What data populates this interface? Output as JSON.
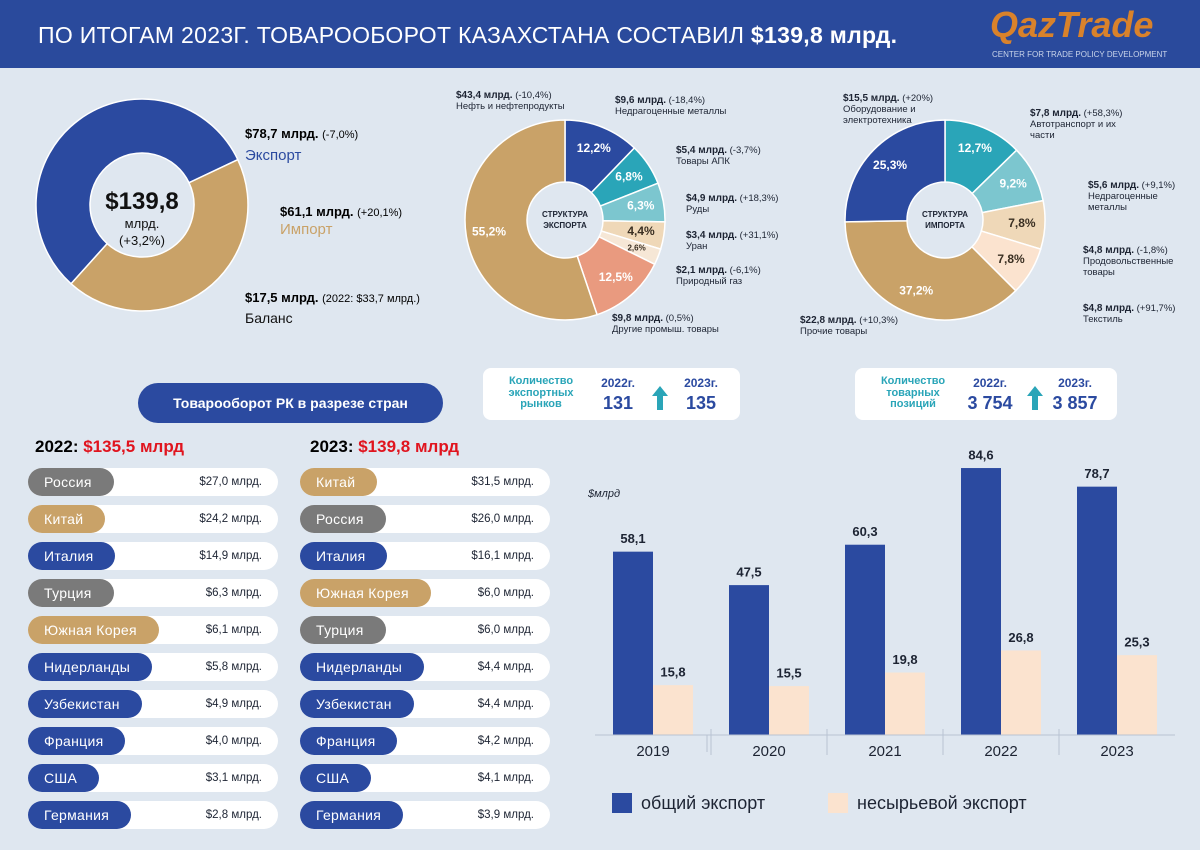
{
  "header": {
    "title": "ПО ИТОГАМ 2023Г. ТОВАРООБОРОТ КАЗАХСТАНА СОСТАВИЛ",
    "highlight": "$139,8 млрд.",
    "logo": "QazTrade",
    "logo_subtitle": "CENTER FOR TRADE POLICY DEVELOPMENT"
  },
  "chart_data": [
    {
      "type": "pie",
      "center_value": "$139,8",
      "center_unit": "млрд.",
      "center_change": "(+3,2%)",
      "categories": [
        "Экспорт",
        "Импорт"
      ],
      "values": [
        78.7,
        61.1
      ],
      "value_labels": [
        "$78,7 млрд.",
        "$61,1 млрд."
      ],
      "changes": [
        "(-7,0%)",
        "(+20,1%)"
      ],
      "colors": [
        "#2b4aa0",
        "#c9a268"
      ],
      "balance_label": "$17,5 млрд.",
      "balance_note": "(2022: $33,7 млрд.)",
      "balance_name": "Баланс"
    },
    {
      "type": "pie",
      "center_lines": [
        "СТРУКТУРА",
        "ЭКСПОРТА"
      ],
      "categories": [
        "Недрагоценные металлы",
        "Товары АПК",
        "Руды",
        "Уран",
        "Природный газ",
        "Другие промыш. товары",
        "Нефть и нефтепродукты"
      ],
      "values": [
        12.2,
        6.8,
        6.3,
        4.4,
        2.6,
        12.5,
        55.2
      ],
      "value_labels": [
        "12,2%",
        "6,8%",
        "6,3%",
        "4,4%",
        "2,6%",
        "12,5%",
        "55,2%"
      ],
      "amounts": [
        "$9,6 млрд.",
        "$5,4 млрд.",
        "$4,9 млрд.",
        "$3,4 млрд.",
        "$2,1 млрд.",
        "$9,8 млрд.",
        "$43,4 млрд."
      ],
      "changes": [
        "(-18,4%)",
        "(-3,7%)",
        "(+18,3%)",
        "(+31,1%)",
        "(-6,1%)",
        "(0,5%)",
        "(-10,4%)"
      ],
      "colors": [
        "#2b4aa0",
        "#2aa5b8",
        "#7cc6cf",
        "#efd8b8",
        "#f6e7d6",
        "#e99a7f",
        "#c9a268"
      ]
    },
    {
      "type": "pie",
      "center_lines": [
        "СТРУКТУРА",
        "ИМПОРТА"
      ],
      "categories": [
        "Автотранспорт и их части",
        "Недрагоценные металлы",
        "Продовольственные товары",
        "Текстиль",
        "Прочие товары",
        "Оборудование и электротехника"
      ],
      "values": [
        12.7,
        9.2,
        7.8,
        7.8,
        37.2,
        25.3
      ],
      "value_labels": [
        "12,7%",
        "9,2%",
        "7,8%",
        "7,8%",
        "37,2%",
        "25,3%"
      ],
      "amounts": [
        "$7,8 млрд.",
        "$5,6 млрд.",
        "$4,8 млрд.",
        "$4,8 млрд.",
        "$22,8 млрд.",
        "$15,5 млрд."
      ],
      "changes": [
        "(+58,3%)",
        "(+9,1%)",
        "(-1,8%)",
        "(+91,7%)",
        "(+10,3%)",
        "(+20%)"
      ],
      "colors": [
        "#2aa5b8",
        "#7cc6cf",
        "#efd8b8",
        "#fbe3cf",
        "#c9a268",
        "#2b4aa0"
      ]
    },
    {
      "type": "bar",
      "y_label": "$млрд",
      "categories": [
        "2019",
        "2020",
        "2021",
        "2022",
        "2023"
      ],
      "ylim": [
        0,
        90
      ],
      "series": [
        {
          "name": "общий экспорт",
          "color": "#2b4aa0",
          "values": [
            58.1,
            47.5,
            60.3,
            84.6,
            78.7
          ],
          "value_labels": [
            "58,1",
            "47,5",
            "60,3",
            "84,6",
            "78,7"
          ]
        },
        {
          "name": "несырьевой экспорт",
          "color": "#fbe3cf",
          "values": [
            15.8,
            15.5,
            19.8,
            26.8,
            25.3
          ],
          "value_labels": [
            "15,8",
            "15,5",
            "19,8",
            "26,8",
            "25,3"
          ]
        }
      ]
    }
  ],
  "stats": [
    {
      "label": "Количество экспортных рынков",
      "year1": "2022г.",
      "value1": "131",
      "year2": "2023г.",
      "value2": "135"
    },
    {
      "label": "Количество товарных позиций",
      "year1": "2022г.",
      "value1": "3 754",
      "year2": "2023г.",
      "value2": "3 857"
    }
  ],
  "countries": {
    "title": "Товарооборот РК в разрезе стран",
    "columns": [
      {
        "year": "2022:",
        "total": "$135,5 млрд",
        "rows": [
          {
            "name": "Россия",
            "value": "$27,0 млрд.",
            "color": "#7a7a7a"
          },
          {
            "name": "Китай",
            "value": "$24,2 млрд.",
            "color": "#c9a268"
          },
          {
            "name": "Италия",
            "value": "$14,9 млрд.",
            "color": "#2b4aa0"
          },
          {
            "name": "Турция",
            "value": "$6,3 млрд.",
            "color": "#7a7a7a"
          },
          {
            "name": "Южная Корея",
            "value": "$6,1 млрд.",
            "color": "#c9a268"
          },
          {
            "name": "Нидерланды",
            "value": "$5,8 млрд.",
            "color": "#2b4aa0"
          },
          {
            "name": "Узбекистан",
            "value": "$4,9 млрд.",
            "color": "#2b4aa0"
          },
          {
            "name": "Франция",
            "value": "$4,0 млрд.",
            "color": "#2b4aa0"
          },
          {
            "name": "США",
            "value": "$3,1 млрд.",
            "color": "#2b4aa0"
          },
          {
            "name": "Германия",
            "value": "$2,8 млрд.",
            "color": "#2b4aa0"
          }
        ]
      },
      {
        "year": "2023:",
        "total": "$139,8 млрд",
        "rows": [
          {
            "name": "Китай",
            "value": "$31,5 млрд.",
            "color": "#c9a268"
          },
          {
            "name": "Россия",
            "value": "$26,0 млрд.",
            "color": "#7a7a7a"
          },
          {
            "name": "Италия",
            "value": "$16,1 млрд.",
            "color": "#2b4aa0"
          },
          {
            "name": "Южная Корея",
            "value": "$6,0 млрд.",
            "color": "#c9a268"
          },
          {
            "name": "Турция",
            "value": "$6,0 млрд.",
            "color": "#7a7a7a"
          },
          {
            "name": "Нидерланды",
            "value": "$4,4 млрд.",
            "color": "#2b4aa0"
          },
          {
            "name": "Узбекистан",
            "value": "$4,4 млрд.",
            "color": "#2b4aa0"
          },
          {
            "name": "Франция",
            "value": "$4,2 млрд.",
            "color": "#2b4aa0"
          },
          {
            "name": "США",
            "value": "$4,1 млрд.",
            "color": "#2b4aa0"
          },
          {
            "name": "Германия",
            "value": "$3,9 млрд.",
            "color": "#2b4aa0"
          }
        ]
      }
    ]
  }
}
